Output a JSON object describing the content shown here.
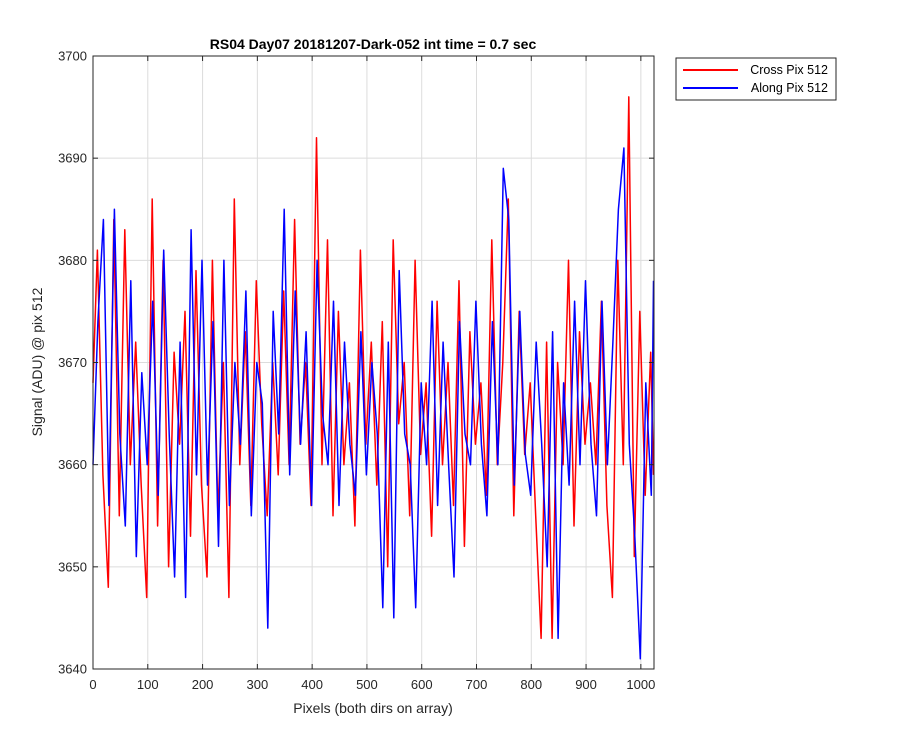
{
  "chart_data": {
    "type": "line",
    "title": "RS04 Day07 20181207-Dark-052 int time = 0.7 sec",
    "xlabel": "Pixels (both dirs on array)",
    "ylabel": "Signal (ADU) @ pix 512",
    "xlim": [
      0,
      1024
    ],
    "ylim": [
      3640,
      3700
    ],
    "xticks": [
      0,
      100,
      200,
      300,
      400,
      500,
      600,
      700,
      800,
      900,
      1000
    ],
    "yticks": [
      3640,
      3650,
      3660,
      3670,
      3680,
      3690,
      3700
    ],
    "grid": true,
    "legend_position": "outside-top-right",
    "series": [
      {
        "name": "Cross Pix 512",
        "color": "#ff0000",
        "x": [
          0,
          8,
          18,
          28,
          38,
          48,
          58,
          68,
          78,
          88,
          98,
          108,
          118,
          128,
          138,
          148,
          158,
          168,
          178,
          188,
          198,
          208,
          218,
          228,
          238,
          248,
          258,
          268,
          278,
          288,
          298,
          308,
          318,
          328,
          338,
          348,
          358,
          368,
          378,
          388,
          398,
          408,
          418,
          428,
          438,
          448,
          458,
          468,
          478,
          488,
          498,
          508,
          518,
          528,
          538,
          548,
          558,
          568,
          578,
          588,
          598,
          608,
          618,
          628,
          638,
          648,
          658,
          668,
          678,
          688,
          698,
          708,
          718,
          728,
          738,
          748,
          758,
          768,
          778,
          788,
          798,
          808,
          818,
          828,
          838,
          848,
          858,
          868,
          878,
          888,
          898,
          908,
          918,
          928,
          938,
          948,
          958,
          968,
          978,
          988,
          998,
          1008,
          1018,
          1023
        ],
        "values": [
          3668,
          3681,
          3659,
          3648,
          3684,
          3655,
          3683,
          3660,
          3672,
          3658,
          3647,
          3686,
          3654,
          3680,
          3650,
          3671,
          3662,
          3675,
          3653,
          3679,
          3658,
          3649,
          3680,
          3655,
          3670,
          3647,
          3686,
          3660,
          3673,
          3656,
          3678,
          3664,
          3655,
          3670,
          3659,
          3677,
          3660,
          3684,
          3662,
          3670,
          3656,
          3692,
          3660,
          3682,
          3655,
          3675,
          3660,
          3668,
          3654,
          3681,
          3662,
          3672,
          3658,
          3674,
          3650,
          3682,
          3664,
          3670,
          3655,
          3680,
          3661,
          3668,
          3653,
          3676,
          3660,
          3670,
          3656,
          3678,
          3652,
          3673,
          3662,
          3668,
          3657,
          3682,
          3660,
          3670,
          3686,
          3655,
          3675,
          3661,
          3668,
          3655,
          3643,
          3672,
          3643,
          3670,
          3660,
          3680,
          3654,
          3673,
          3662,
          3668,
          3660,
          3676,
          3656,
          3647,
          3680,
          3660,
          3696,
          3651,
          3675,
          3657,
          3671,
          3659
        ]
      },
      {
        "name": "Along Pix 512",
        "color": "#0000ff",
        "x": [
          0,
          9,
          19,
          29,
          39,
          49,
          59,
          69,
          79,
          89,
          99,
          109,
          119,
          129,
          139,
          149,
          159,
          169,
          179,
          189,
          199,
          209,
          219,
          229,
          239,
          249,
          259,
          269,
          279,
          289,
          299,
          309,
          319,
          329,
          339,
          349,
          359,
          369,
          379,
          389,
          399,
          409,
          419,
          429,
          439,
          449,
          459,
          469,
          479,
          489,
          499,
          509,
          519,
          529,
          539,
          549,
          559,
          569,
          579,
          589,
          599,
          609,
          619,
          629,
          639,
          649,
          659,
          669,
          679,
          689,
          699,
          709,
          719,
          729,
          739,
          749,
          759,
          769,
          779,
          789,
          799,
          809,
          819,
          829,
          839,
          849,
          859,
          869,
          879,
          889,
          899,
          909,
          919,
          929,
          939,
          949,
          959,
          969,
          979,
          989,
          999,
          1009,
          1019,
          1023
        ],
        "values": [
          3660,
          3674,
          3684,
          3656,
          3685,
          3663,
          3654,
          3678,
          3651,
          3669,
          3660,
          3676,
          3657,
          3681,
          3663,
          3649,
          3672,
          3647,
          3683,
          3659,
          3680,
          3658,
          3674,
          3652,
          3680,
          3656,
          3670,
          3662,
          3677,
          3655,
          3670,
          3666,
          3644,
          3675,
          3663,
          3685,
          3659,
          3677,
          3662,
          3673,
          3656,
          3680,
          3665,
          3660,
          3676,
          3656,
          3672,
          3662,
          3657,
          3673,
          3659,
          3670,
          3663,
          3646,
          3672,
          3645,
          3679,
          3663,
          3660,
          3646,
          3668,
          3660,
          3676,
          3656,
          3672,
          3660,
          3649,
          3674,
          3663,
          3660,
          3676,
          3662,
          3655,
          3674,
          3660,
          3689,
          3684,
          3658,
          3675,
          3661,
          3657,
          3672,
          3662,
          3650,
          3673,
          3643,
          3668,
          3658,
          3676,
          3660,
          3678,
          3662,
          3655,
          3676,
          3660,
          3672,
          3685,
          3691,
          3662,
          3653,
          3641,
          3668,
          3657,
          3678
        ]
      }
    ]
  }
}
